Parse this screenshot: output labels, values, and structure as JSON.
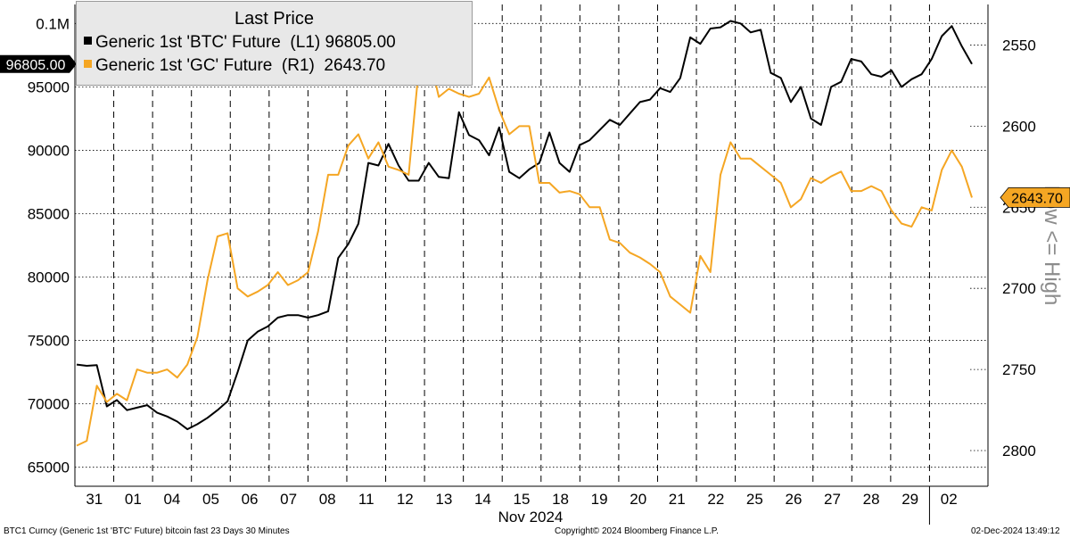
{
  "chart_data": {
    "type": "line",
    "title": "Last Price",
    "x_month_label": "Nov 2024",
    "x_ticks": [
      "31",
      "01",
      "04",
      "05",
      "06",
      "07",
      "08",
      "11",
      "12",
      "13",
      "14",
      "15",
      "18",
      "19",
      "20",
      "21",
      "22",
      "25",
      "26",
      "27",
      "28",
      "29",
      "02"
    ],
    "left_axis": {
      "ticks": [
        "65000",
        "70000",
        "75000",
        "80000",
        "85000",
        "90000",
        "95000",
        "0.1M"
      ],
      "range": [
        63500,
        101500
      ]
    },
    "right_axis": {
      "ticks": [
        "2550",
        "2600",
        "2650",
        "2700",
        "2750",
        "2800"
      ],
      "range": [
        2525,
        2822
      ],
      "inverted": true,
      "label": "Low <= High"
    },
    "series": [
      {
        "name": "Generic 1st 'BTC' Future",
        "axis_tag": "(L1)",
        "last": "96805.00",
        "axis": "left",
        "color": "#000000",
        "values": [
          73100,
          73000,
          73050,
          69800,
          70300,
          69500,
          69700,
          69900,
          69300,
          69000,
          68600,
          68000,
          68400,
          68900,
          69500,
          70200,
          72500,
          75000,
          75700,
          76100,
          76800,
          77000,
          77000,
          76800,
          77000,
          77300,
          81500,
          82600,
          84200,
          89000,
          88800,
          90500,
          88800,
          87600,
          87600,
          89000,
          87900,
          87800,
          93000,
          91200,
          90800,
          89600,
          91800,
          88300,
          87800,
          88500,
          89000,
          91400,
          89000,
          88300,
          90400,
          90800,
          91600,
          92400,
          92000,
          92900,
          93800,
          94000,
          94900,
          94600,
          95700,
          98900,
          98400,
          99600,
          99700,
          100200,
          100000,
          99300,
          99500,
          96100,
          95700,
          93800,
          95000,
          92500,
          92000,
          95000,
          95400,
          97200,
          97000,
          96000,
          95800,
          96300,
          95000,
          95600,
          96000,
          97200,
          99000,
          99800,
          98200,
          96800
        ]
      },
      {
        "name": "Generic 1st 'GC' Future",
        "axis_tag": "(R1)",
        "last": "2643.70",
        "axis": "right",
        "color": "#f5a623",
        "values": [
          2797,
          2794,
          2760,
          2770,
          2765,
          2769,
          2750,
          2752,
          2752,
          2750,
          2755,
          2747,
          2730,
          2695,
          2668,
          2666,
          2700,
          2705,
          2702,
          2698,
          2690,
          2698,
          2695,
          2690,
          2665,
          2630,
          2630,
          2612,
          2605,
          2620,
          2610,
          2625,
          2627,
          2630,
          2565,
          2555,
          2582,
          2577,
          2580,
          2582,
          2580,
          2570,
          2590,
          2605,
          2600,
          2600,
          2635,
          2635,
          2641,
          2640,
          2642,
          2650,
          2650,
          2670,
          2672,
          2678,
          2681,
          2685,
          2690,
          2705,
          2710,
          2715,
          2680,
          2690,
          2630,
          2610,
          2620,
          2620,
          2625,
          2630,
          2635,
          2650,
          2645,
          2632,
          2635,
          2631,
          2628,
          2640,
          2640,
          2637,
          2640,
          2652,
          2660,
          2662,
          2650,
          2652,
          2627,
          2615,
          2625,
          2644
        ]
      }
    ],
    "annotations": {
      "left_last_label": "96805.00",
      "right_last_label": "2643.70"
    }
  },
  "legend": {
    "title": "Last Price",
    "rows": [
      "Generic 1st 'BTC' Future  (L1) 96805.00",
      "Generic 1st 'GC' Future  (R1)  2643.70"
    ]
  },
  "footer": {
    "left": "BTC1 Curncy (Generic 1st 'BTC' Future) bitcoin fast 23 Days 30 Minutes",
    "center": "Copyright© 2024 Bloomberg Finance L.P.",
    "right": "02-Dec-2024 13:49:12"
  }
}
